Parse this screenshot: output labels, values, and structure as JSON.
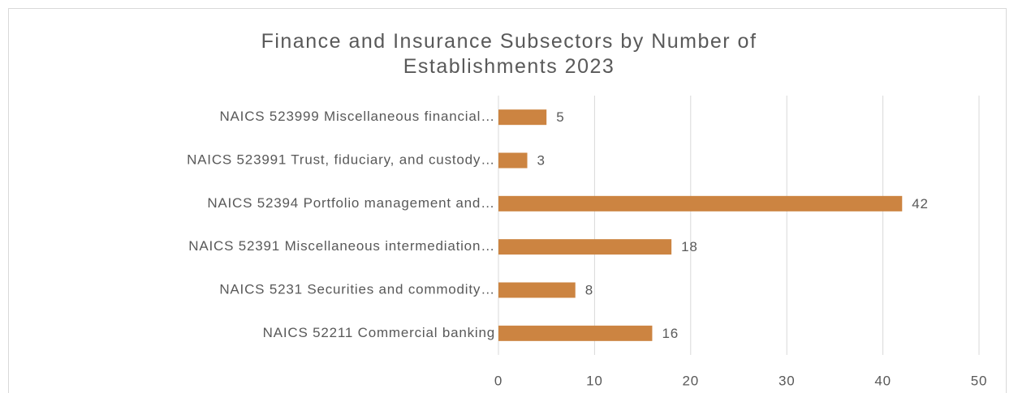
{
  "chart_data": {
    "type": "bar",
    "orientation": "horizontal",
    "title": "Finance and Insurance Subsectors by Number of Establishments 2023",
    "categories": [
      "NAICS 523999 Miscellaneous financial…",
      "NAICS 523991 Trust, fiduciary, and custody…",
      "NAICS 52394 Portfolio management and…",
      "NAICS 52391 Miscellaneous intermediation…",
      "NAICS 5231 Securities and commodity…",
      "NAICS 52211 Commercial banking"
    ],
    "values": [
      5,
      3,
      42,
      18,
      8,
      16
    ],
    "color": "#cc8441",
    "xlim": [
      0,
      50
    ],
    "xticks": [
      0,
      10,
      20,
      30,
      40,
      50
    ],
    "grid": true
  }
}
